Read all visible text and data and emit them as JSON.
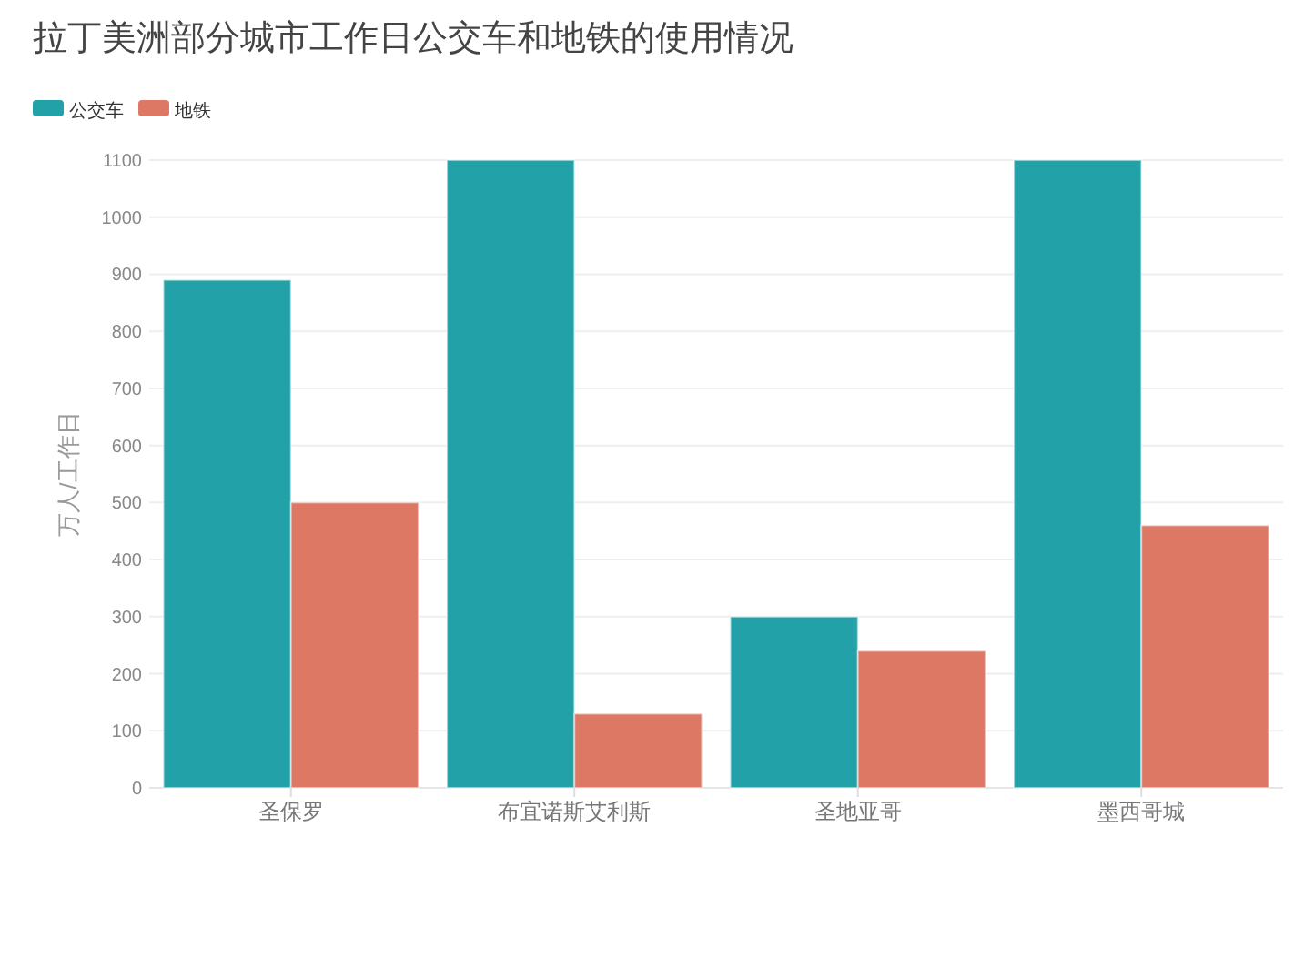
{
  "chart_data": {
    "type": "bar",
    "title": "拉丁美洲部分城市工作日公交车和地铁的使用情况",
    "ylabel": "万人/工作日",
    "categories": [
      "圣保罗",
      "布宜诺斯艾利斯",
      "圣地亚哥",
      "墨西哥城"
    ],
    "series": [
      {
        "name": "公交车",
        "color": "#22a2a8",
        "values": [
          890,
          1100,
          300,
          1100
        ]
      },
      {
        "name": "地铁",
        "color": "#dc7864",
        "values": [
          500,
          130,
          240,
          460
        ]
      }
    ],
    "ylim": [
      0,
      1100
    ],
    "yticks": [
      0,
      100,
      200,
      300,
      400,
      500,
      600,
      700,
      800,
      900,
      1000,
      1100
    ],
    "grid": "y",
    "legend": "top left"
  }
}
